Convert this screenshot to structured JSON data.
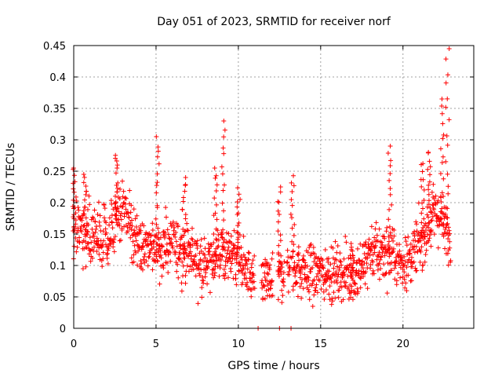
{
  "chart_data": {
    "type": "scatter",
    "title": "Day 051 of 2023, SRMTID for receiver norf",
    "xlabel": "GPS time / hours",
    "ylabel": "SRMTID / TECUs",
    "xlim": [
      0,
      24.3
    ],
    "ylim": [
      0,
      0.45
    ],
    "x_ticks": [
      0,
      5,
      10,
      15,
      20
    ],
    "y_ticks": [
      0,
      0.05,
      0.1,
      0.15,
      0.2,
      0.25,
      0.3,
      0.35,
      0.4,
      0.45
    ],
    "x_tick_labels": [
      "0",
      "5",
      "10",
      "15",
      "20"
    ],
    "y_tick_labels": [
      "0",
      "0.05",
      "0.1",
      "0.15",
      "0.2",
      "0.25",
      "0.3",
      "0.35",
      "0.4",
      "0.45"
    ],
    "grid": true,
    "marker": "+",
    "color": "#ff0000",
    "points_per_hour": 62,
    "trend": [
      [
        0,
        0.16
      ],
      [
        1,
        0.15
      ],
      [
        2,
        0.14
      ],
      [
        3,
        0.19
      ],
      [
        4,
        0.13
      ],
      [
        5,
        0.13
      ],
      [
        6,
        0.13
      ],
      [
        7,
        0.12
      ],
      [
        8,
        0.1
      ],
      [
        9,
        0.12
      ],
      [
        10,
        0.11
      ],
      [
        11,
        0.07
      ],
      [
        12,
        0.07
      ],
      [
        13,
        0.1
      ],
      [
        14,
        0.09
      ],
      [
        15,
        0.09
      ],
      [
        16,
        0.09
      ],
      [
        17,
        0.08
      ],
      [
        18,
        0.12
      ],
      [
        19,
        0.12
      ],
      [
        20,
        0.1
      ],
      [
        21,
        0.13
      ],
      [
        22,
        0.19
      ],
      [
        22.9,
        0.14
      ]
    ],
    "scatter_spread": 0.035,
    "bursts": [
      {
        "x": 0.05,
        "peak": 0.255
      },
      {
        "x": 0.7,
        "peak": 0.245
      },
      {
        "x": 2.6,
        "peak": 0.28
      },
      {
        "x": 5.1,
        "peak": 0.305
      },
      {
        "x": 6.7,
        "peak": 0.24
      },
      {
        "x": 8.6,
        "peak": 0.255
      },
      {
        "x": 9.1,
        "peak": 0.33
      },
      {
        "x": 10.0,
        "peak": 0.225
      },
      {
        "x": 12.5,
        "peak": 0.225
      },
      {
        "x": 13.3,
        "peak": 0.245
      },
      {
        "x": 16.9,
        "peak": 0.135
      },
      {
        "x": 19.2,
        "peak": 0.29
      },
      {
        "x": 21.2,
        "peak": 0.265
      },
      {
        "x": 21.6,
        "peak": 0.285
      },
      {
        "x": 22.4,
        "peak": 0.365
      },
      {
        "x": 22.7,
        "peak": 0.445
      }
    ],
    "zero_points": [
      11.2,
      12.5,
      13.2
    ],
    "gaps": [
      [
        11.0,
        11.4
      ],
      [
        12.1,
        12.4
      ],
      [
        12.8,
        12.95
      ],
      [
        13.15,
        13.3
      ]
    ]
  }
}
